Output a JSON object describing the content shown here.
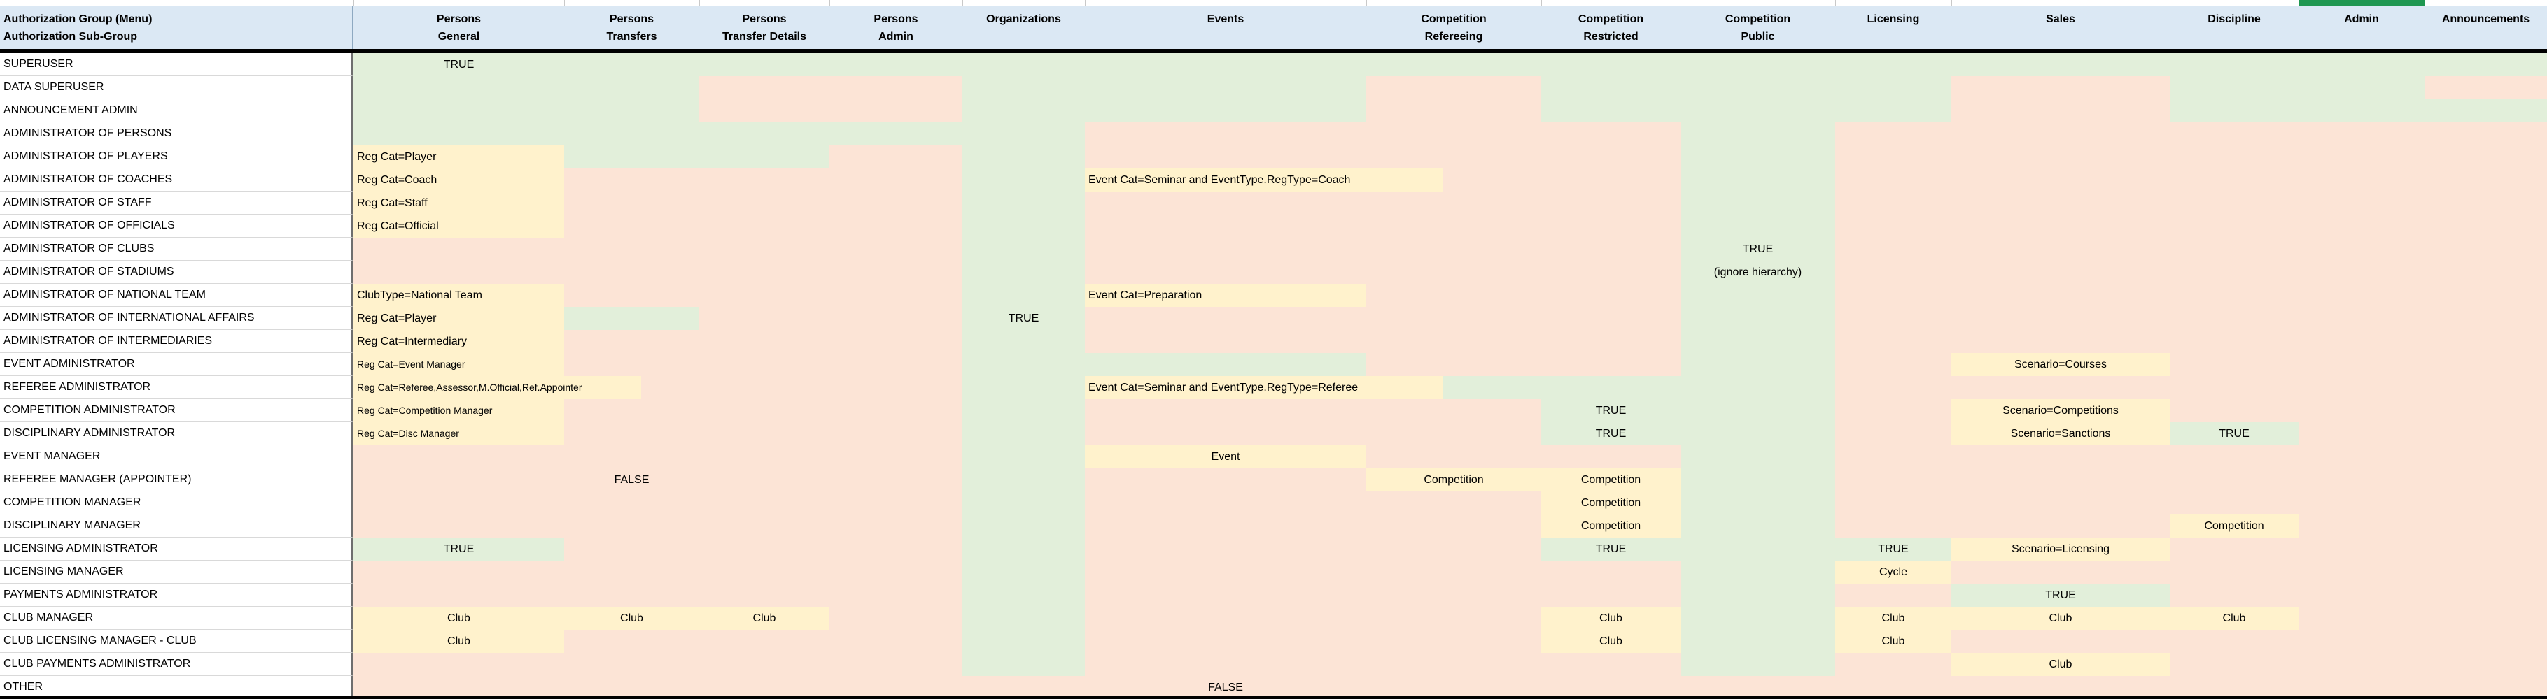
{
  "title": "Authorization matrix spreadsheet",
  "colors": {
    "fill_allowed_green": "#E2EFDA",
    "fill_denied_pink": "#FCE4D6",
    "fill_conditional_yellow": "#FFF2CC",
    "header_blue": "#dbe8f4",
    "selected_column_bar_green": "#1f9751",
    "divider_black": "#000000"
  },
  "header": {
    "label_line1": "Authorization Group (Menu)",
    "label_line2": "Authorization Sub-Group",
    "columns": [
      {
        "line1": "Persons",
        "line2": "General"
      },
      {
        "line1": "Persons",
        "line2": "Transfers"
      },
      {
        "line1": "Persons",
        "line2": "Transfer Details"
      },
      {
        "line1": "Persons",
        "line2": "Admin"
      },
      {
        "line1": "Organizations",
        "line2": ""
      },
      {
        "line1": "Events",
        "line2": ""
      },
      {
        "line1": "Competition",
        "line2": "Refereeing"
      },
      {
        "line1": "Competition",
        "line2": "Restricted"
      },
      {
        "line1": "Competition",
        "line2": "Public"
      },
      {
        "line1": "Licensing",
        "line2": ""
      },
      {
        "line1": "Sales",
        "line2": ""
      },
      {
        "line1": "Discipline",
        "line2": ""
      },
      {
        "line1": "Admin",
        "line2": "",
        "selected": true
      },
      {
        "line1": "Announcements",
        "line2": ""
      }
    ]
  },
  "cell_code_legend": "Each cell code is BG|TEXT|FLAGS. BG: g=green(allowed), p=pink(denied), y=yellow(conditional), w=white. FLAGS: c=centered text, l=left text, s=small font, o=text/fill overflows into next column.",
  "rows": [
    {
      "label": "SUPERUSER",
      "cells": [
        "g|TRUE|c",
        "g",
        "g",
        "g",
        "g",
        "g",
        "g",
        "g",
        "g",
        "g",
        "g",
        "g",
        "g",
        "g"
      ]
    },
    {
      "label": "DATA SUPERUSER",
      "cells": [
        "g",
        "g",
        "p",
        "p",
        "g",
        "g",
        "p",
        "g",
        "g",
        "g",
        "p",
        "g",
        "g",
        "p"
      ]
    },
    {
      "label": "ANNOUNCEMENT ADMIN",
      "cells": [
        "g",
        "g",
        "p",
        "p",
        "g",
        "g",
        "p",
        "g",
        "g",
        "g",
        "p",
        "g",
        "g",
        "g"
      ]
    },
    {
      "label": "ADMINISTRATOR OF PERSONS",
      "cells": [
        "g",
        "g",
        "g",
        "g",
        "g",
        "p",
        "p",
        "p",
        "g",
        "p",
        "p",
        "p",
        "p",
        "p"
      ]
    },
    {
      "label": "ADMINISTRATOR OF PLAYERS",
      "cells": [
        "y|Reg Cat=Player|l",
        "g",
        "g",
        "p",
        "g",
        "p",
        "p",
        "p",
        "g",
        "p",
        "p",
        "p",
        "p",
        "p"
      ]
    },
    {
      "label": "ADMINISTRATOR OF COACHES",
      "cells": [
        "y|Reg Cat=Coach|l",
        "p",
        "p",
        "p",
        "g",
        "y|Event Cat=Seminar and EventType.RegType=Coach|lo",
        "p",
        "p",
        "g",
        "p",
        "p",
        "p",
        "p",
        "p"
      ]
    },
    {
      "label": "ADMINISTRATOR OF STAFF",
      "cells": [
        "y|Reg Cat=Staff|l",
        "p",
        "p",
        "p",
        "g",
        "p",
        "p",
        "p",
        "g",
        "p",
        "p",
        "p",
        "p",
        "p"
      ]
    },
    {
      "label": "ADMINISTRATOR OF OFFICIALS",
      "cells": [
        "y|Reg Cat=Official|l",
        "p",
        "p",
        "p",
        "g",
        "p",
        "p",
        "p",
        "g",
        "p",
        "p",
        "p",
        "p",
        "p"
      ]
    },
    {
      "label": "ADMINISTRATOR OF CLUBS",
      "cells": [
        "p",
        "p",
        "p",
        "p",
        "g",
        "p",
        "p",
        "p",
        "g|TRUE|c",
        "p",
        "p",
        "p",
        "p",
        "p"
      ]
    },
    {
      "label": "ADMINISTRATOR OF STADIUMS",
      "cells": [
        "p",
        "p",
        "p",
        "p",
        "g",
        "p",
        "p",
        "p",
        "g|(ignore hierarchy)|c",
        "p",
        "p",
        "p",
        "p",
        "p"
      ]
    },
    {
      "label": "ADMINISTRATOR OF NATIONAL TEAM",
      "cells": [
        "y|ClubType=National Team|l",
        "p",
        "p",
        "p",
        "g",
        "y|Event Cat=Preparation|l",
        "p",
        "p",
        "g",
        "p",
        "p",
        "p",
        "p",
        "p"
      ]
    },
    {
      "label": "ADMINISTRATOR OF INTERNATIONAL AFFAIRS",
      "cells": [
        "y|Reg Cat=Player|l",
        "g",
        "p",
        "p",
        "g|TRUE|c",
        "p",
        "p",
        "p",
        "g",
        "p",
        "p",
        "p",
        "p",
        "p"
      ]
    },
    {
      "label": "ADMINISTRATOR OF INTERMEDIARIES",
      "cells": [
        "y|Reg Cat=Intermediary|l",
        "p",
        "p",
        "p",
        "g",
        "p",
        "p",
        "p",
        "g",
        "p",
        "p",
        "p",
        "p",
        "p"
      ]
    },
    {
      "label": "EVENT ADMINISTRATOR",
      "cells": [
        "y|Reg Cat=Event Manager|ls",
        "p",
        "p",
        "p",
        "g",
        "g",
        "p",
        "p",
        "g",
        "p",
        "y|Scenario=Courses|c",
        "p",
        "p",
        "p"
      ]
    },
    {
      "label": "REFEREE ADMINISTRATOR",
      "cells": [
        "y|Reg Cat=Referee,Assessor,M.Official,Ref.Appointer|lso",
        "p",
        "p",
        "p",
        "g",
        "y|Event Cat=Seminar and EventType.RegType=Referee|lo",
        "g",
        "g",
        "g",
        "p",
        "p",
        "p",
        "p",
        "p"
      ]
    },
    {
      "label": "COMPETITION ADMINISTRATOR",
      "cells": [
        "y|Reg Cat=Competition Manager|ls",
        "p",
        "p",
        "p",
        "g",
        "p",
        "p",
        "g|TRUE|c",
        "g",
        "p",
        "y|Scenario=Competitions|c",
        "p",
        "p",
        "p"
      ]
    },
    {
      "label": "DISCIPLINARY ADMINISTRATOR",
      "cells": [
        "y|Reg Cat=Disc Manager|ls",
        "p",
        "p",
        "p",
        "g",
        "p",
        "p",
        "g|TRUE|c",
        "g",
        "p",
        "y|Scenario=Sanctions|c",
        "g|TRUE|c",
        "p",
        "p"
      ]
    },
    {
      "label": "EVENT MANAGER",
      "cells": [
        "p",
        "p",
        "p",
        "p",
        "g",
        "y|Event|c",
        "p",
        "p",
        "g",
        "p",
        "p",
        "p",
        "p",
        "p"
      ]
    },
    {
      "label": "REFEREE MANAGER (APPOINTER)",
      "cells": [
        "p",
        "p|FALSE|c",
        "p",
        "p",
        "g",
        "p",
        "y|Competition|c",
        "y|Competition|c",
        "g",
        "p",
        "p",
        "p",
        "p",
        "p"
      ]
    },
    {
      "label": "COMPETITION MANAGER",
      "cells": [
        "p",
        "p",
        "p",
        "p",
        "g",
        "p",
        "p",
        "y|Competition|c",
        "g",
        "p",
        "p",
        "p",
        "p",
        "p"
      ]
    },
    {
      "label": "DISCIPLINARY MANAGER",
      "cells": [
        "p",
        "p",
        "p",
        "p",
        "g",
        "p",
        "p",
        "y|Competition|c",
        "g",
        "p",
        "p",
        "y|Competition|c",
        "p",
        "p"
      ]
    },
    {
      "label": "LICENSING ADMINISTRATOR",
      "cells": [
        "g|TRUE|c",
        "p",
        "p",
        "p",
        "g",
        "p",
        "p",
        "g|TRUE|c",
        "g",
        "g|TRUE|c",
        "y|Scenario=Licensing|c",
        "p",
        "p",
        "p"
      ]
    },
    {
      "label": "LICENSING MANAGER",
      "cells": [
        "p",
        "p",
        "p",
        "p",
        "g",
        "p",
        "p",
        "p",
        "g",
        "y|Cycle|c",
        "p",
        "p",
        "p",
        "p"
      ]
    },
    {
      "label": "PAYMENTS ADMINISTRATOR",
      "cells": [
        "p",
        "p",
        "p",
        "p",
        "g",
        "p",
        "p",
        "p",
        "g",
        "p",
        "g|TRUE|c",
        "p",
        "p",
        "p"
      ]
    },
    {
      "label": "CLUB MANAGER",
      "cells": [
        "y|Club|c",
        "y|Club|c",
        "y|Club|c",
        "p",
        "g",
        "p",
        "p",
        "y|Club|c",
        "g",
        "y|Club|c",
        "y|Club|c",
        "y|Club|c",
        "p",
        "p"
      ]
    },
    {
      "label": "CLUB LICENSING MANAGER - CLUB",
      "cells": [
        "y|Club|c",
        "p",
        "p",
        "p",
        "g",
        "p",
        "p",
        "y|Club|c",
        "g",
        "y|Club|c",
        "p",
        "p",
        "p",
        "p"
      ]
    },
    {
      "label": "CLUB PAYMENTS ADMINISTRATOR",
      "cells": [
        "p",
        "p",
        "p",
        "p",
        "g",
        "p",
        "p",
        "p",
        "g",
        "p",
        "y|Club|c",
        "p",
        "p",
        "p"
      ]
    },
    {
      "label": "OTHER",
      "cells": [
        "p",
        "p",
        "p",
        "p",
        "p",
        "p|FALSE|c",
        "p",
        "p",
        "p",
        "p",
        "p",
        "p",
        "p",
        "p"
      ]
    }
  ]
}
